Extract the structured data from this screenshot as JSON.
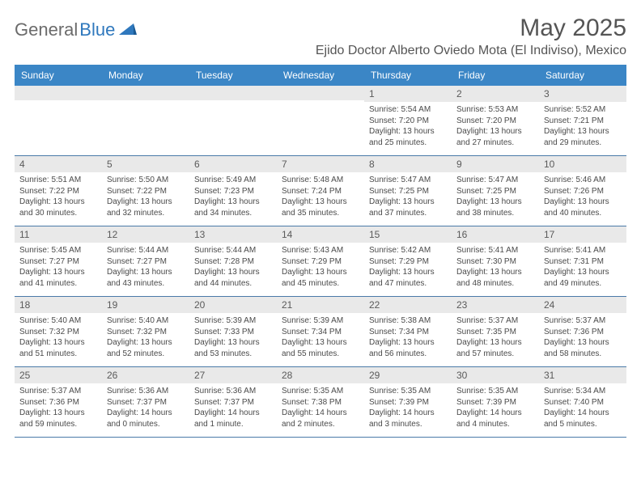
{
  "brand": {
    "part1": "General",
    "part2": "Blue"
  },
  "title": "May 2025",
  "location": "Ejido Doctor Alberto Oviedo Mota (El Indiviso), Mexico",
  "colors": {
    "header_bg": "#3b86c6",
    "header_text": "#ffffff",
    "band_bg": "#e9e9e9",
    "row_border": "#4a7aa8",
    "text": "#4a4a4a",
    "title_text": "#555555"
  },
  "weekdays": [
    "Sunday",
    "Monday",
    "Tuesday",
    "Wednesday",
    "Thursday",
    "Friday",
    "Saturday"
  ],
  "weeks": [
    [
      null,
      null,
      null,
      null,
      {
        "n": "1",
        "sr": "5:54 AM",
        "ss": "7:20 PM",
        "dl": "13 hours and 25 minutes."
      },
      {
        "n": "2",
        "sr": "5:53 AM",
        "ss": "7:20 PM",
        "dl": "13 hours and 27 minutes."
      },
      {
        "n": "3",
        "sr": "5:52 AM",
        "ss": "7:21 PM",
        "dl": "13 hours and 29 minutes."
      }
    ],
    [
      {
        "n": "4",
        "sr": "5:51 AM",
        "ss": "7:22 PM",
        "dl": "13 hours and 30 minutes."
      },
      {
        "n": "5",
        "sr": "5:50 AM",
        "ss": "7:22 PM",
        "dl": "13 hours and 32 minutes."
      },
      {
        "n": "6",
        "sr": "5:49 AM",
        "ss": "7:23 PM",
        "dl": "13 hours and 34 minutes."
      },
      {
        "n": "7",
        "sr": "5:48 AM",
        "ss": "7:24 PM",
        "dl": "13 hours and 35 minutes."
      },
      {
        "n": "8",
        "sr": "5:47 AM",
        "ss": "7:25 PM",
        "dl": "13 hours and 37 minutes."
      },
      {
        "n": "9",
        "sr": "5:47 AM",
        "ss": "7:25 PM",
        "dl": "13 hours and 38 minutes."
      },
      {
        "n": "10",
        "sr": "5:46 AM",
        "ss": "7:26 PM",
        "dl": "13 hours and 40 minutes."
      }
    ],
    [
      {
        "n": "11",
        "sr": "5:45 AM",
        "ss": "7:27 PM",
        "dl": "13 hours and 41 minutes."
      },
      {
        "n": "12",
        "sr": "5:44 AM",
        "ss": "7:27 PM",
        "dl": "13 hours and 43 minutes."
      },
      {
        "n": "13",
        "sr": "5:44 AM",
        "ss": "7:28 PM",
        "dl": "13 hours and 44 minutes."
      },
      {
        "n": "14",
        "sr": "5:43 AM",
        "ss": "7:29 PM",
        "dl": "13 hours and 45 minutes."
      },
      {
        "n": "15",
        "sr": "5:42 AM",
        "ss": "7:29 PM",
        "dl": "13 hours and 47 minutes."
      },
      {
        "n": "16",
        "sr": "5:41 AM",
        "ss": "7:30 PM",
        "dl": "13 hours and 48 minutes."
      },
      {
        "n": "17",
        "sr": "5:41 AM",
        "ss": "7:31 PM",
        "dl": "13 hours and 49 minutes."
      }
    ],
    [
      {
        "n": "18",
        "sr": "5:40 AM",
        "ss": "7:32 PM",
        "dl": "13 hours and 51 minutes."
      },
      {
        "n": "19",
        "sr": "5:40 AM",
        "ss": "7:32 PM",
        "dl": "13 hours and 52 minutes."
      },
      {
        "n": "20",
        "sr": "5:39 AM",
        "ss": "7:33 PM",
        "dl": "13 hours and 53 minutes."
      },
      {
        "n": "21",
        "sr": "5:39 AM",
        "ss": "7:34 PM",
        "dl": "13 hours and 55 minutes."
      },
      {
        "n": "22",
        "sr": "5:38 AM",
        "ss": "7:34 PM",
        "dl": "13 hours and 56 minutes."
      },
      {
        "n": "23",
        "sr": "5:37 AM",
        "ss": "7:35 PM",
        "dl": "13 hours and 57 minutes."
      },
      {
        "n": "24",
        "sr": "5:37 AM",
        "ss": "7:36 PM",
        "dl": "13 hours and 58 minutes."
      }
    ],
    [
      {
        "n": "25",
        "sr": "5:37 AM",
        "ss": "7:36 PM",
        "dl": "13 hours and 59 minutes."
      },
      {
        "n": "26",
        "sr": "5:36 AM",
        "ss": "7:37 PM",
        "dl": "14 hours and 0 minutes."
      },
      {
        "n": "27",
        "sr": "5:36 AM",
        "ss": "7:37 PM",
        "dl": "14 hours and 1 minute."
      },
      {
        "n": "28",
        "sr": "5:35 AM",
        "ss": "7:38 PM",
        "dl": "14 hours and 2 minutes."
      },
      {
        "n": "29",
        "sr": "5:35 AM",
        "ss": "7:39 PM",
        "dl": "14 hours and 3 minutes."
      },
      {
        "n": "30",
        "sr": "5:35 AM",
        "ss": "7:39 PM",
        "dl": "14 hours and 4 minutes."
      },
      {
        "n": "31",
        "sr": "5:34 AM",
        "ss": "7:40 PM",
        "dl": "14 hours and 5 minutes."
      }
    ]
  ],
  "labels": {
    "sunrise": "Sunrise: ",
    "sunset": "Sunset: ",
    "daylight": "Daylight: "
  }
}
